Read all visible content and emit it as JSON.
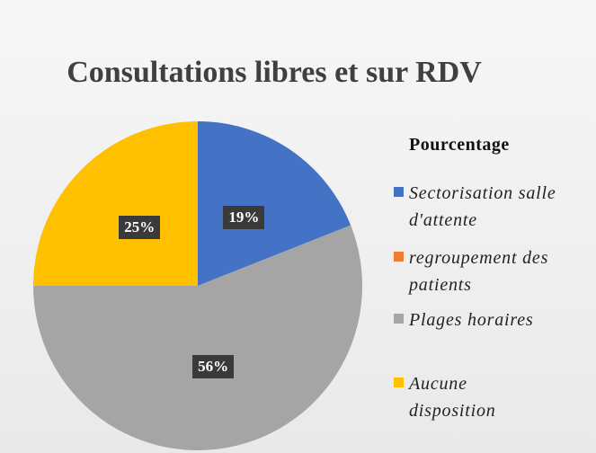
{
  "chart_data": {
    "type": "pie",
    "title": "Consultations libres et sur RDV",
    "legend_title": "Pourcentage",
    "categories": [
      "Sectorisation salle d'attente",
      "regroupement des patients",
      "Plages horaires",
      "Aucune disposition"
    ],
    "values": [
      19,
      0,
      56,
      25
    ],
    "value_labels": [
      "19%",
      null,
      "56%",
      "25%"
    ],
    "colors": [
      "#4472c4",
      "#ed7d31",
      "#a5a5a5",
      "#ffc000"
    ],
    "legend": "right"
  }
}
